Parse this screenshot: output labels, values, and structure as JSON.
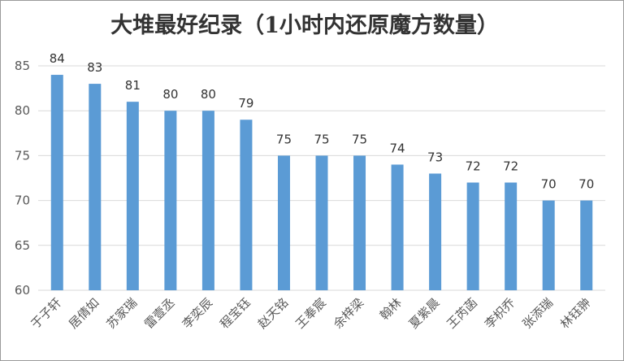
{
  "chart_data": {
    "type": "bar",
    "title": "大堆最好纪录（1小时内还原魔方数量）",
    "categories": [
      "于子轩",
      "居倩如",
      "苏家瑞",
      "雷壹丞",
      "李奕辰",
      "程宝钰",
      "赵天铭",
      "王奉宸",
      "余梓梁",
      "翰林",
      "夏紫晨",
      "王芮菡",
      "李枳乔",
      "张添瑞",
      "林钰翀"
    ],
    "values": [
      84,
      83,
      81,
      80,
      80,
      79,
      75,
      75,
      75,
      74,
      73,
      72,
      72,
      70,
      70
    ],
    "ylim": [
      60,
      85
    ],
    "yticks": [
      60,
      65,
      70,
      75,
      80,
      85
    ],
    "grid": true,
    "legend": "none",
    "bar_color": "#5b9bd5",
    "xlabel": "",
    "ylabel": ""
  }
}
